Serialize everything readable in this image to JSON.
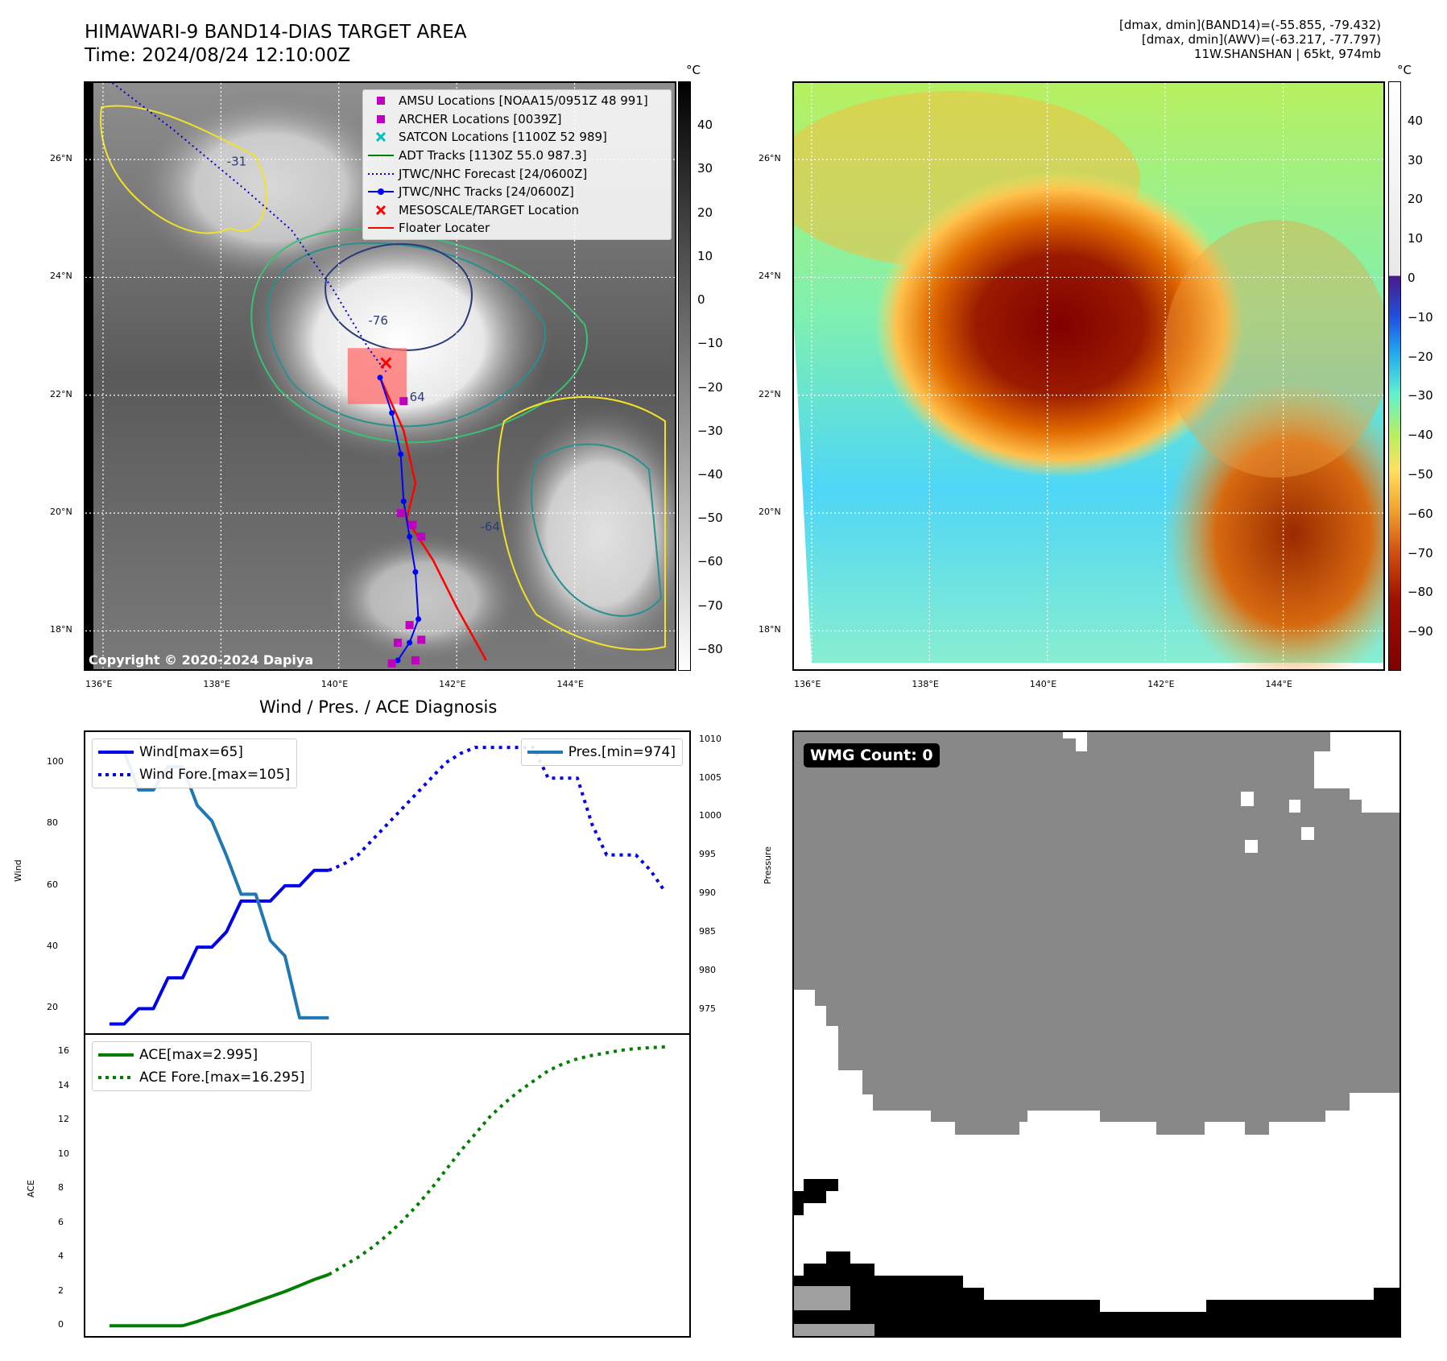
{
  "header": {
    "title_line1": "HIMAWARI-9 BAND14-DIAS TARGET AREA",
    "title_line2": "Time: 2024/08/24 12:10:00Z",
    "info_line1": "[dmax, dmin](BAND14)=(-55.855, -79.432)",
    "info_line2": "[dmax, dmin](AWV)=(-63.217, -77.797)",
    "info_line3": "11W.SHANSHAN | 65kt, 974mb"
  },
  "map": {
    "lat_labels": [
      "26°N",
      "24°N",
      "22°N",
      "20°N",
      "18°N"
    ],
    "lon_labels": [
      "136°E",
      "138°E",
      "140°E",
      "142°E",
      "144°E"
    ],
    "lat_values": [
      26,
      24,
      22,
      20,
      18
    ],
    "lon_values": [
      136,
      138,
      140,
      142,
      144
    ],
    "lat_range": [
      17.35,
      27.3
    ],
    "lon_range": [
      135.7,
      145.7
    ],
    "copyright": "Copyright © 2020-2024 Dapiya",
    "contour_labels": [
      "-31",
      "-76",
      "64",
      "-64"
    ],
    "legend": [
      {
        "label": "AMSU Locations [NOAA15/0951Z 48 991]",
        "symbol": "square",
        "color": "#c000c0"
      },
      {
        "label": "ARCHER Locations [0039Z]",
        "symbol": "square",
        "color": "#c000c0"
      },
      {
        "label": "SATCON Locations [1100Z 52 989]",
        "symbol": "x",
        "color": "#00bfbf"
      },
      {
        "label": "ADT Tracks [1130Z 55.0 987.3]",
        "symbol": "line",
        "color": "#008000"
      },
      {
        "label": "JTWC/NHC Forecast [24/0600Z]",
        "symbol": "dotted",
        "color": "#0000cc"
      },
      {
        "label": "JTWC/NHC Tracks [24/0600Z]",
        "symbol": "dot-line",
        "color": "#0000ff"
      },
      {
        "label": "MESOSCALE/TARGET Location",
        "symbol": "x",
        "color": "#ff0000"
      },
      {
        "label": "Floater Locater",
        "symbol": "line",
        "color": "#ff0000"
      }
    ],
    "tracks": {
      "forecast": [
        [
          135.9,
          27.5
        ],
        [
          137.2,
          26.5
        ],
        [
          138.4,
          25.5
        ],
        [
          139.2,
          24.8
        ],
        [
          139.9,
          23.8
        ],
        [
          140.5,
          22.8
        ],
        [
          140.8,
          22.4
        ]
      ],
      "jtwc": [
        [
          140.7,
          22.3
        ],
        [
          140.9,
          21.7
        ],
        [
          141.05,
          21.0
        ],
        [
          141.1,
          20.2
        ],
        [
          141.2,
          19.6
        ],
        [
          141.3,
          19.0
        ],
        [
          141.35,
          18.2
        ],
        [
          141.2,
          17.8
        ],
        [
          141.0,
          17.5
        ]
      ],
      "floater": [
        [
          140.7,
          22.3
        ],
        [
          141.1,
          21.4
        ],
        [
          141.3,
          20.5
        ],
        [
          141.15,
          19.9
        ],
        [
          141.6,
          19.2
        ],
        [
          142.0,
          18.4
        ],
        [
          142.5,
          17.5
        ]
      ],
      "amsu": [
        [
          141.1,
          21.9
        ],
        [
          141.05,
          20.0
        ],
        [
          141.25,
          19.8
        ],
        [
          141.4,
          19.6
        ],
        [
          141.2,
          18.1
        ],
        [
          141.4,
          17.85
        ],
        [
          141.0,
          17.8
        ],
        [
          141.3,
          17.5
        ],
        [
          140.9,
          17.45
        ]
      ],
      "target": [
        140.8,
        22.55
      ],
      "target_box": {
        "lon": [
          140.15,
          141.15
        ],
        "lat": [
          21.85,
          22.8
        ]
      }
    }
  },
  "colorbar_gray": {
    "unit": "°C",
    "ticks": [
      40,
      30,
      20,
      10,
      0,
      -10,
      -20,
      -30,
      -40,
      -50,
      -60,
      -70,
      -80
    ],
    "range": [
      -85,
      50
    ]
  },
  "colorbar_color": {
    "unit": "°C",
    "ticks": [
      40,
      30,
      20,
      10,
      0,
      -10,
      -20,
      -30,
      -40,
      -50,
      -60,
      -70,
      -80,
      -90
    ],
    "range": [
      -100,
      50
    ]
  },
  "diagnosis": {
    "title": "Wind / Pres. / ACE Diagnosis",
    "wind_ylabel": "Wind",
    "pressure_ylabel": "Pressure",
    "ace_ylabel": "ACE",
    "wind_ticks": [
      20,
      40,
      60,
      80,
      100
    ],
    "pressure_ticks": [
      1010,
      1005,
      1000,
      995,
      990,
      985,
      980,
      975
    ],
    "ace_ticks": [
      0,
      2,
      4,
      6,
      8,
      10,
      12,
      14,
      16
    ]
  },
  "chart_data": [
    {
      "type": "line",
      "title": "Wind / Pres. / ACE Diagnosis",
      "ylabel": "Wind",
      "ylim": [
        12,
        110
      ],
      "y2label": "Pressure",
      "y2lim": [
        972,
        1011
      ],
      "x": [
        0,
        1,
        2,
        3,
        4,
        5,
        6,
        7,
        8,
        9,
        10,
        11,
        12,
        13,
        14,
        15,
        16,
        17,
        18,
        19,
        20,
        21,
        22,
        23,
        24,
        25,
        26,
        27,
        28,
        29,
        30,
        31,
        32,
        33,
        34,
        35,
        36,
        37,
        38
      ],
      "series": [
        {
          "name": "Wind[max=65]",
          "axis": "left",
          "style": "solid",
          "color": "#0000ee",
          "x": [
            0,
            1,
            2,
            3,
            4,
            5,
            6,
            7,
            8,
            9,
            10,
            11,
            12,
            13,
            14,
            15
          ],
          "values": [
            15,
            15,
            20,
            20,
            30,
            30,
            40,
            40,
            45,
            55,
            55,
            55,
            60,
            60,
            65,
            65
          ]
        },
        {
          "name": "Wind Fore.[max=105]",
          "axis": "left",
          "style": "dotted",
          "color": "#0000ee",
          "x": [
            15,
            16,
            17,
            18,
            19,
            20,
            21,
            22,
            23,
            24,
            25,
            26,
            27,
            28,
            29,
            30,
            31,
            32,
            33,
            34,
            35,
            36,
            37,
            38
          ],
          "values": [
            65,
            67,
            70,
            75,
            80,
            85,
            90,
            95,
            100,
            103,
            105,
            105,
            105,
            105,
            105,
            95,
            95,
            95,
            80,
            70,
            70,
            70,
            65,
            58
          ]
        },
        {
          "name": "Pres.[min=974]",
          "axis": "right",
          "style": "solid",
          "color": "#1f77b4",
          "x": [
            0,
            1,
            2,
            3,
            4,
            5,
            6,
            7,
            8,
            9,
            10,
            11,
            12,
            13,
            14,
            15
          ],
          "values": [
            1008.5,
            1008.5,
            1003.5,
            1003.5,
            1006.5,
            1006.5,
            1001.5,
            999.5,
            995,
            990,
            990,
            984,
            982,
            974,
            974,
            974
          ]
        }
      ]
    },
    {
      "type": "line",
      "ylabel": "ACE",
      "ylim": [
        -0.6,
        17
      ],
      "x": [
        0,
        1,
        2,
        3,
        4,
        5,
        6,
        7,
        8,
        9,
        10,
        11,
        12,
        13,
        14,
        15,
        16,
        17,
        18,
        19,
        20,
        21,
        22,
        23,
        24,
        25,
        26,
        27,
        28,
        29,
        30,
        31,
        32,
        33,
        34,
        35,
        36,
        37,
        38
      ],
      "series": [
        {
          "name": "ACE[max=2.995]",
          "style": "solid",
          "color": "#007f00",
          "x": [
            0,
            1,
            2,
            3,
            4,
            5,
            6,
            7,
            8,
            9,
            10,
            11,
            12,
            13,
            14,
            15
          ],
          "values": [
            0,
            0,
            0,
            0,
            0,
            0,
            0.25,
            0.55,
            0.8,
            1.1,
            1.4,
            1.7,
            2.0,
            2.35,
            2.7,
            2.995
          ]
        },
        {
          "name": "ACE Fore.[max=16.295]",
          "style": "dotted",
          "color": "#007f00",
          "x": [
            15,
            16,
            17,
            18,
            19,
            20,
            21,
            22,
            23,
            24,
            25,
            26,
            27,
            28,
            29,
            30,
            31,
            32,
            33,
            34,
            35,
            36,
            37,
            38
          ],
          "values": [
            2.995,
            3.5,
            4.0,
            4.6,
            5.3,
            6.1,
            7.0,
            8.0,
            9.1,
            10.2,
            11.2,
            12.2,
            13.0,
            13.7,
            14.3,
            14.9,
            15.3,
            15.6,
            15.8,
            15.95,
            16.1,
            16.2,
            16.25,
            16.295
          ]
        }
      ]
    }
  ],
  "wmg": {
    "label": "WMG Count: 0"
  }
}
